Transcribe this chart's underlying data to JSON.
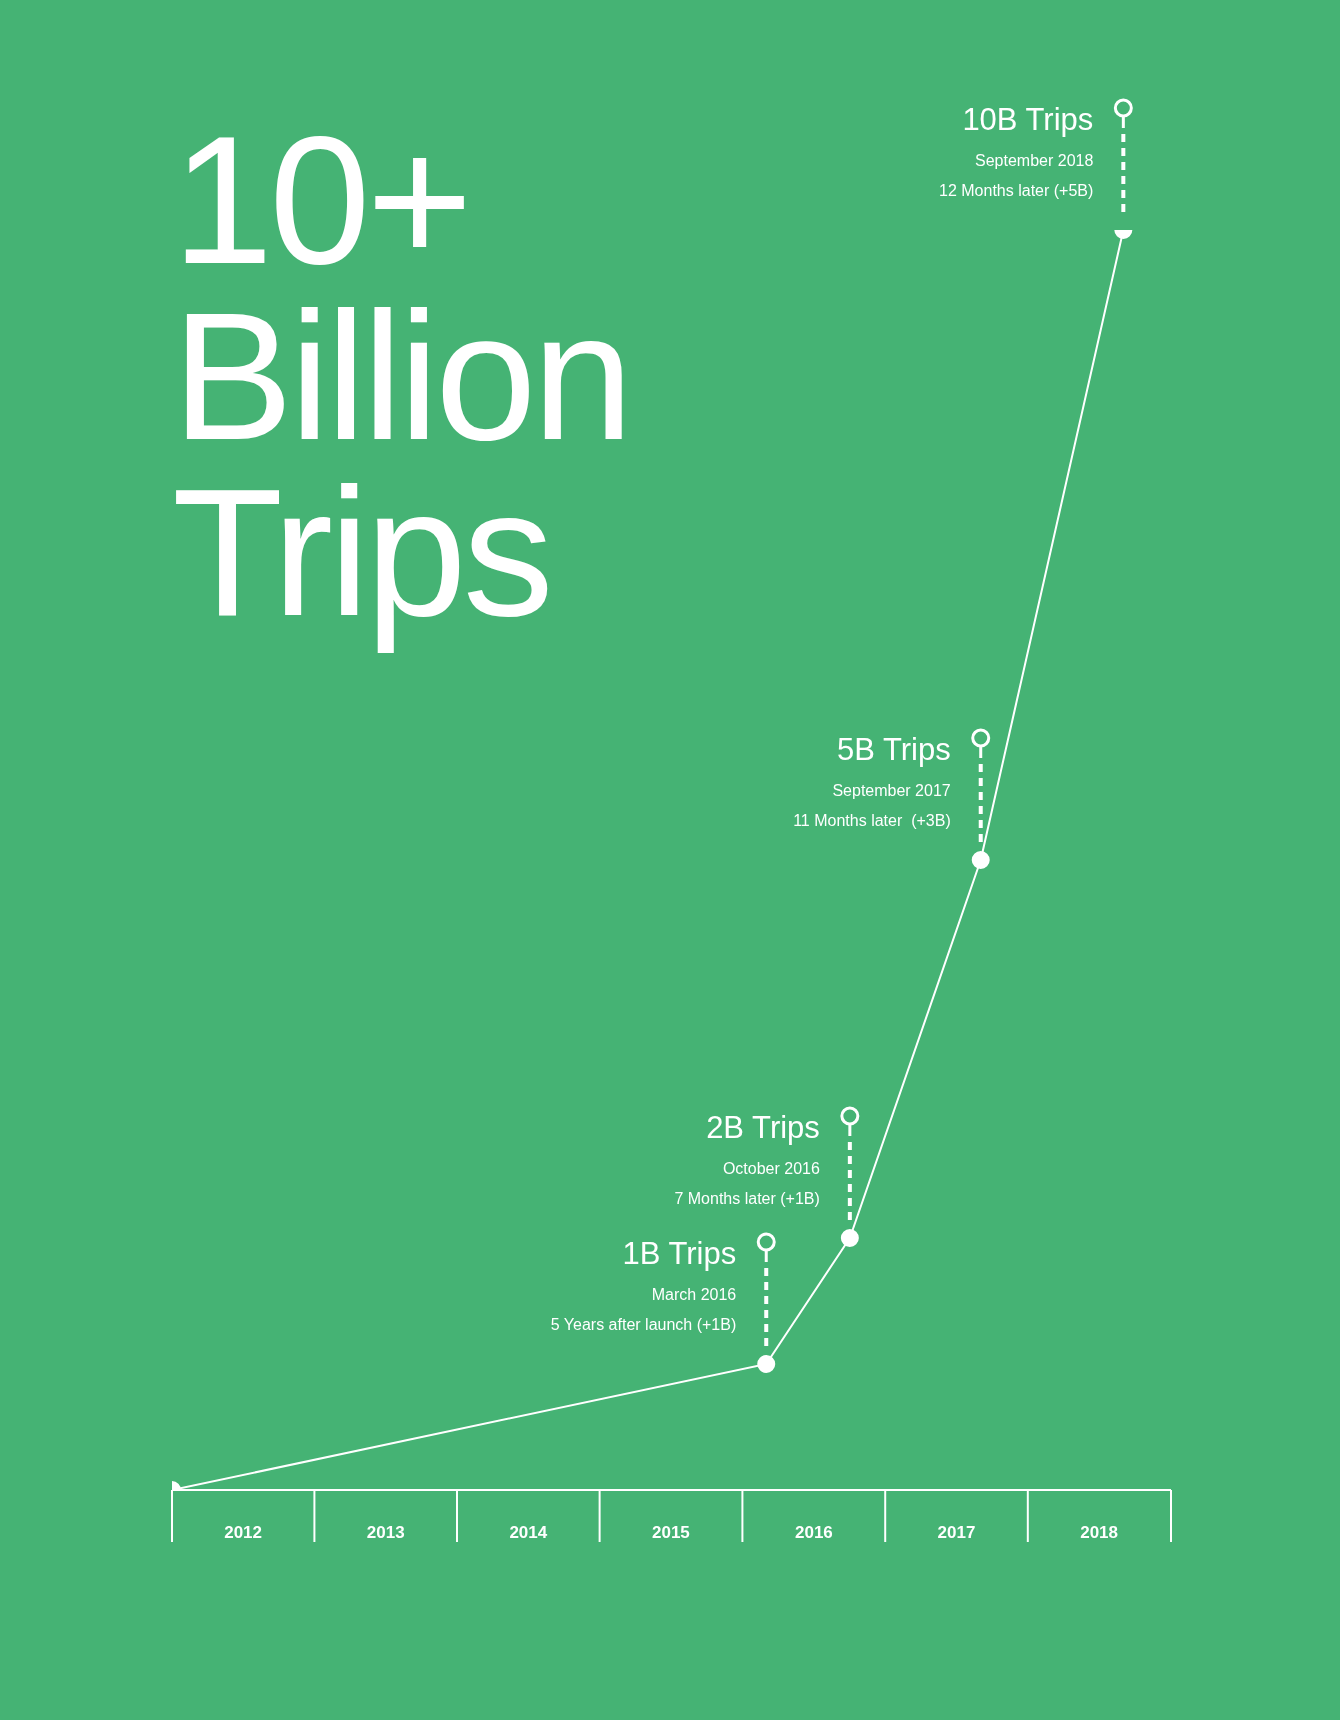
{
  "chart_data": {
    "type": "line",
    "title": "10+ Billion Trips",
    "x": [
      "2012-01",
      "2016-03",
      "2016-10",
      "2017-09",
      "2018-09"
    ],
    "series": [
      {
        "color": "#ffffff",
        "values": [
          0,
          1,
          2,
          5,
          10
        ],
        "value_labels": [
          null,
          "1B Trips",
          "2B Trips",
          "5B Trips",
          "10B Trips"
        ]
      }
    ],
    "xlim": [
      "2012-01",
      "2019-01"
    ],
    "xticks": [
      {
        "value": "2012-07",
        "label": "2012"
      },
      {
        "value": "2013-07",
        "label": "2013"
      },
      {
        "value": "2014-07",
        "label": "2014"
      },
      {
        "value": "2015-07",
        "label": "2015"
      },
      {
        "value": "2016-07",
        "label": "2016"
      },
      {
        "value": "2017-07",
        "label": "2017"
      },
      {
        "value": "2018-07",
        "label": "2018"
      }
    ],
    "tick_labels": "x",
    "marker": "circle",
    "line_style": "solid",
    "annotations": [
      {
        "text": "March 2016\n5 Years after launch (+1B)",
        "x": "2016-03",
        "y": 1
      },
      {
        "text": "October 2016\n7 Months later (+1B)",
        "x": "2016-10",
        "y": 2
      },
      {
        "text": "September 2017\n11 Months later  (+3B)",
        "x": "2017-09",
        "y": 5
      },
      {
        "text": "September 2018\n12 Months later (+5B)",
        "x": "2018-09",
        "y": 10
      }
    ]
  }
}
